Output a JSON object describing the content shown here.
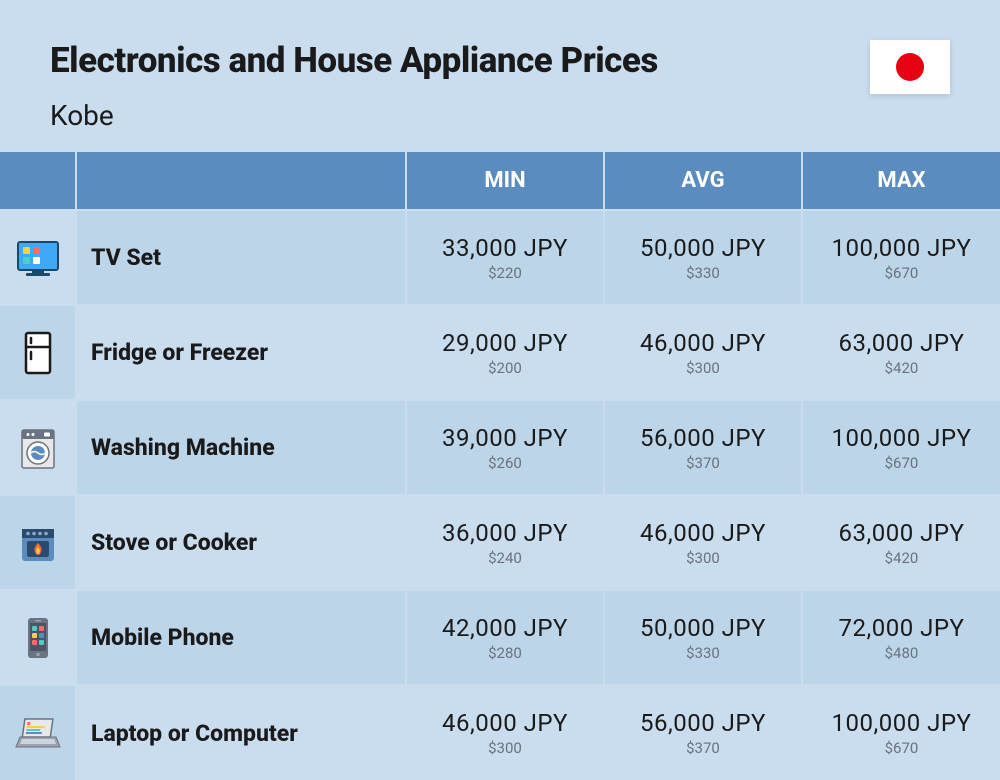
{
  "header": {
    "title": "Electronics and House Appliance Prices",
    "subtitle": "Kobe"
  },
  "columns": [
    {
      "label": ""
    },
    {
      "label": ""
    },
    {
      "label": "MIN"
    },
    {
      "label": "AVG"
    },
    {
      "label": "MAX"
    }
  ],
  "rows": [
    {
      "icon": "tv",
      "name": "TV Set",
      "min": {
        "jpy": "33,000 JPY",
        "usd": "$220"
      },
      "avg": {
        "jpy": "50,000 JPY",
        "usd": "$330"
      },
      "max": {
        "jpy": "100,000 JPY",
        "usd": "$670"
      }
    },
    {
      "icon": "fridge",
      "name": "Fridge or Freezer",
      "min": {
        "jpy": "29,000 JPY",
        "usd": "$200"
      },
      "avg": {
        "jpy": "46,000 JPY",
        "usd": "$300"
      },
      "max": {
        "jpy": "63,000 JPY",
        "usd": "$420"
      }
    },
    {
      "icon": "washer",
      "name": "Washing Machine",
      "min": {
        "jpy": "39,000 JPY",
        "usd": "$260"
      },
      "avg": {
        "jpy": "56,000 JPY",
        "usd": "$370"
      },
      "max": {
        "jpy": "100,000 JPY",
        "usd": "$670"
      }
    },
    {
      "icon": "stove",
      "name": "Stove or Cooker",
      "min": {
        "jpy": "36,000 JPY",
        "usd": "$240"
      },
      "avg": {
        "jpy": "46,000 JPY",
        "usd": "$300"
      },
      "max": {
        "jpy": "63,000 JPY",
        "usd": "$420"
      }
    },
    {
      "icon": "phone",
      "name": "Mobile Phone",
      "min": {
        "jpy": "42,000 JPY",
        "usd": "$280"
      },
      "avg": {
        "jpy": "50,000 JPY",
        "usd": "$330"
      },
      "max": {
        "jpy": "72,000 JPY",
        "usd": "$480"
      }
    },
    {
      "icon": "laptop",
      "name": "Laptop or Computer",
      "min": {
        "jpy": "46,000 JPY",
        "usd": "$300"
      },
      "avg": {
        "jpy": "56,000 JPY",
        "usd": "$370"
      },
      "max": {
        "jpy": "100,000 JPY",
        "usd": "$670"
      }
    }
  ],
  "styling": {
    "type": "table",
    "background_color": "#c9ddef",
    "header_bg": "#5b8cbf",
    "header_text_color": "#ffffff",
    "row_alt_bg": "#bcd5e9",
    "grid_color": "#c9ddef",
    "title_fontsize": 35,
    "subtitle_fontsize": 28,
    "header_fontsize": 22,
    "item_fontsize": 23,
    "price_fontsize": 24,
    "sub_price_fontsize": 15,
    "sub_price_color": "#6b7280",
    "flag_bg": "#ffffff",
    "flag_circle": "#e60012"
  },
  "icons": {
    "tv": {
      "primary": "#3fa9f5",
      "accent1": "#ffcc4d",
      "accent2": "#ff6b6b",
      "accent3": "#4ecdc4"
    },
    "fridge": {
      "stroke": "#1a1a1a",
      "fill": "#ffffff"
    },
    "washer": {
      "body": "#e8e8e8",
      "panel": "#6b7280",
      "drum": "#5b8cbf",
      "door": "#ffffff"
    },
    "stove": {
      "body": "#5b8cbf",
      "panel": "#2c4a6b",
      "flame1": "#ff6b35",
      "flame2": "#ffcc4d"
    },
    "phone": {
      "body": "#6b7280",
      "screen": "#4a5568",
      "app1": "#4ecdc4",
      "app2": "#ff6b6b",
      "app3": "#ffcc4d",
      "app4": "#5b8cbf"
    },
    "laptop": {
      "screen": "#e8e8e8",
      "body": "#6b7280",
      "bar1": "#ff6b6b",
      "bar2": "#ffcc4d",
      "bar3": "#4ecdc4"
    }
  }
}
